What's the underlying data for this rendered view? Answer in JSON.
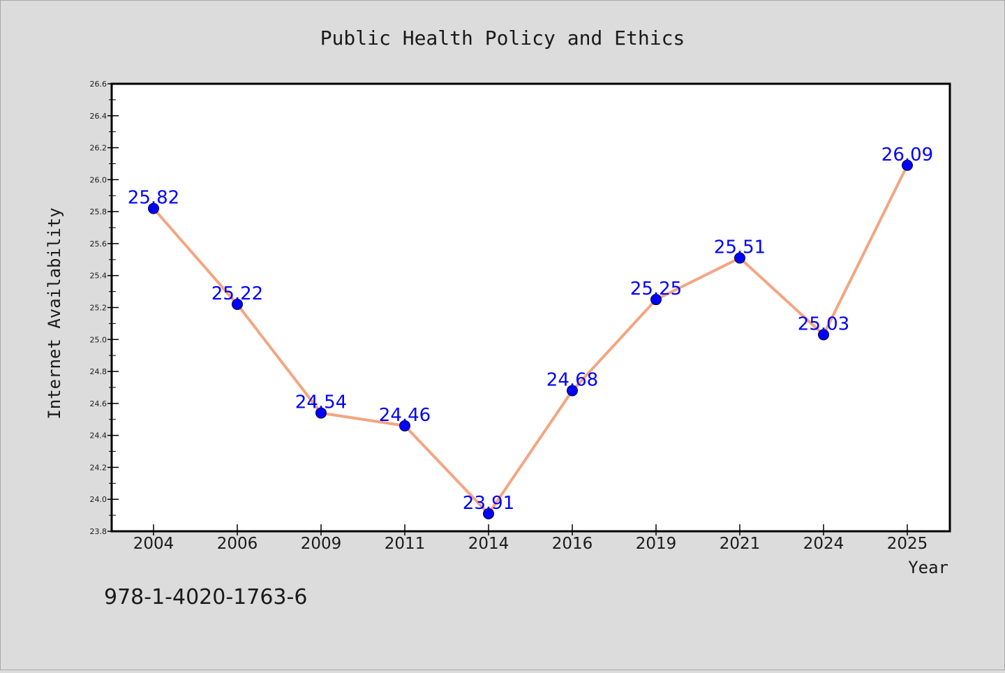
{
  "chart_data": {
    "type": "line",
    "title": "Public Health Policy and Ethics",
    "xlabel": "Year",
    "ylabel": "Internet Availability",
    "categories": [
      "2004",
      "2006",
      "2009",
      "2011",
      "2014",
      "2016",
      "2019",
      "2021",
      "2024",
      "2025"
    ],
    "series": [
      {
        "values": [
          25.82,
          25.22,
          24.54,
          24.46,
          23.91,
          24.68,
          25.25,
          25.51,
          25.03,
          26.09
        ]
      }
    ],
    "data_labels": [
      "25.82",
      "25.22",
      "24.54",
      "24.46",
      "23.91",
      "24.68",
      "25.25",
      "25.51",
      "25.03",
      "26.09"
    ],
    "ylim": [
      23.8,
      26.6
    ],
    "yticks": [
      "23.8",
      "24.0",
      "24.2",
      "24.4",
      "24.6",
      "24.8",
      "25.0",
      "25.2",
      "25.4",
      "25.6",
      "25.8",
      "26.0",
      "26.2",
      "26.4",
      "26.6"
    ],
    "grid": false,
    "legend": "none",
    "colors": {
      "line": "#f4a582",
      "marker": "#0000ff",
      "label": "#0000ff",
      "background": "#dcdcdc",
      "plot_background": "#ffffff"
    }
  },
  "annotation": "978-1-4020-1763-6"
}
